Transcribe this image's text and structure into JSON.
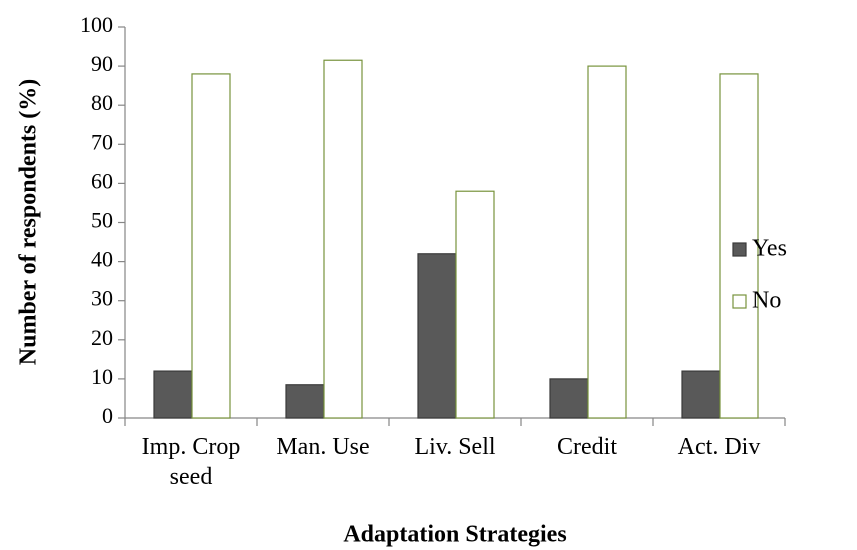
{
  "chart_data": {
    "type": "bar",
    "x_label": "Adaptation Strategies",
    "y_label": "Number of respondents (%)",
    "categories": [
      "Imp. Crop seed",
      "Man. Use",
      "Liv. Sell",
      "Credit",
      "Act. Div"
    ],
    "series": [
      {
        "name": "Yes",
        "color": "#595959",
        "values": [
          12,
          8.5,
          42,
          10,
          12
        ]
      },
      {
        "name": "No",
        "color": "#ffffff",
        "values": [
          88,
          91.5,
          58,
          90,
          88
        ]
      }
    ],
    "ylim": [
      0,
      100
    ],
    "yticks": [
      0,
      10,
      20,
      30,
      40,
      50,
      60,
      70,
      80,
      90,
      100
    ],
    "legend": "right"
  }
}
